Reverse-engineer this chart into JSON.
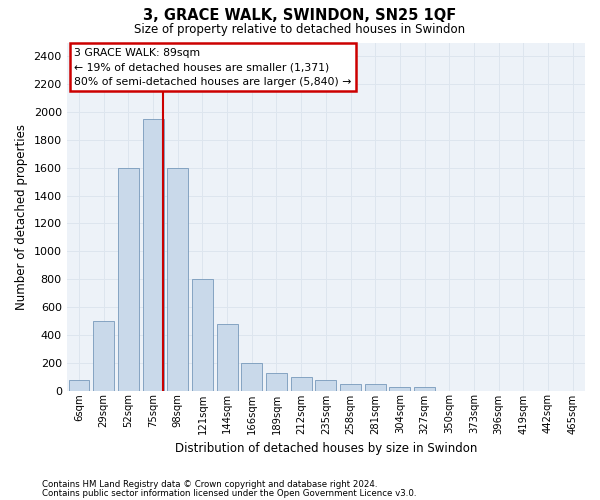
{
  "title": "3, GRACE WALK, SWINDON, SN25 1QF",
  "subtitle": "Size of property relative to detached houses in Swindon",
  "xlabel": "Distribution of detached houses by size in Swindon",
  "ylabel": "Number of detached properties",
  "footnote1": "Contains HM Land Registry data © Crown copyright and database right 2024.",
  "footnote2": "Contains public sector information licensed under the Open Government Licence v3.0.",
  "annotation_title": "3 GRACE WALK: 89sqm",
  "annotation_line1": "← 19% of detached houses are smaller (1,371)",
  "annotation_line2": "80% of semi-detached houses are larger (5,840) →",
  "bar_color": "#c9d9ea",
  "bar_edge_color": "#7799bb",
  "vline_color": "#cc0000",
  "grid_color": "#dde5ee",
  "bg_color": "#edf2f8",
  "categories": [
    "6sqm",
    "29sqm",
    "52sqm",
    "75sqm",
    "98sqm",
    "121sqm",
    "144sqm",
    "166sqm",
    "189sqm",
    "212sqm",
    "235sqm",
    "258sqm",
    "281sqm",
    "304sqm",
    "327sqm",
    "350sqm",
    "373sqm",
    "396sqm",
    "419sqm",
    "442sqm",
    "465sqm"
  ],
  "values": [
    75,
    500,
    1600,
    1950,
    1600,
    800,
    475,
    200,
    125,
    100,
    75,
    50,
    50,
    25,
    25,
    0,
    0,
    0,
    0,
    0,
    0
  ],
  "ylim": [
    0,
    2500
  ],
  "yticks": [
    0,
    200,
    400,
    600,
    800,
    1000,
    1200,
    1400,
    1600,
    1800,
    2000,
    2200,
    2400
  ],
  "vline_x": 3.42
}
